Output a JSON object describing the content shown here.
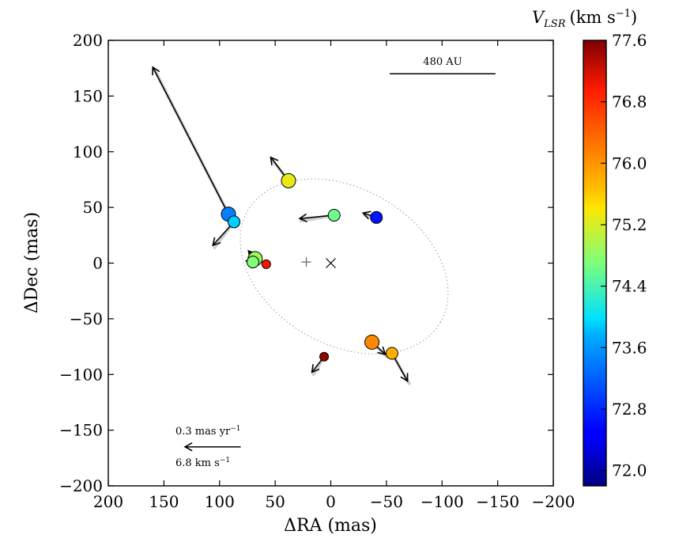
{
  "chart_data": {
    "type": "scatter",
    "xlabel": "ΔRA (mas)",
    "ylabel": "ΔDec (mas)",
    "xlim": [
      200,
      -200
    ],
    "ylim": [
      -200,
      200
    ],
    "xticks": [
      200,
      150,
      100,
      50,
      0,
      -50,
      -100,
      -150,
      -200
    ],
    "xtick_labels": [
      "200",
      "150",
      "100",
      "50",
      "0",
      "−50",
      "−100",
      "−150",
      "−200"
    ],
    "yticks": [
      200,
      150,
      100,
      50,
      0,
      -50,
      -100,
      -150,
      -200
    ],
    "ytick_labels": [
      "200",
      "150",
      "100",
      "50",
      "0",
      "−50",
      "−100",
      "−150",
      "−200"
    ],
    "grid": false,
    "colorbar": {
      "label": "V_LSR (km s^-1)",
      "label_main": "V",
      "label_sub": "LSR",
      "label_units": "(km s",
      "label_exp": "−1",
      "label_close": ")",
      "range": [
        71.8,
        77.6
      ],
      "ticks": [
        72.0,
        72.8,
        73.6,
        74.4,
        75.2,
        76.0,
        76.8,
        77.6
      ],
      "tick_labels": [
        "72.0",
        "72.8",
        "73.6",
        "74.4",
        "75.2",
        "76.0",
        "76.8",
        "77.6"
      ]
    },
    "points": [
      {
        "x": 92,
        "y": 44,
        "v": 73.4,
        "size": "large",
        "arrow": {
          "dx": 68,
          "dy": 132
        }
      },
      {
        "x": 87,
        "y": 37,
        "v": 73.9,
        "size": "medium",
        "arrow": {
          "dx": 19,
          "dy": -21
        }
      },
      {
        "x": 38,
        "y": 74,
        "v": 75.3,
        "size": "large",
        "arrow": {
          "dx": 16,
          "dy": 21
        }
      },
      {
        "x": -3,
        "y": 43,
        "v": 74.6,
        "size": "medium",
        "arrow": {
          "dx": 31,
          "dy": -3
        }
      },
      {
        "x": -41,
        "y": 41,
        "v": 72.6,
        "size": "medium",
        "arrow": {
          "dx": 12,
          "dy": 4
        }
      },
      {
        "x": 68,
        "y": 4,
        "v": 74.9,
        "size": "large",
        "arrow": {
          "dx": 6,
          "dy": 7
        }
      },
      {
        "x": 70,
        "y": 1,
        "v": 74.7,
        "size": "medium",
        "arrow": {
          "dx": 6,
          "dy": 1
        }
      },
      {
        "x": 58,
        "y": -1,
        "v": 77.0,
        "size": "small",
        "arrow": null
      },
      {
        "x": -37,
        "y": -71,
        "v": 76.1,
        "size": "large",
        "arrow": {
          "dx": -12,
          "dy": -11
        }
      },
      {
        "x": -55,
        "y": -81,
        "v": 75.8,
        "size": "medium",
        "arrow": {
          "dx": -14,
          "dy": -25
        }
      },
      {
        "x": 6,
        "y": -84,
        "v": 77.5,
        "size": "small",
        "arrow": {
          "dx": 11,
          "dy": -14
        }
      }
    ],
    "markers": [
      {
        "symbol": "plus",
        "x": 22,
        "y": 1
      },
      {
        "symbol": "cross",
        "x": 0,
        "y": 0
      }
    ],
    "ellipse": {
      "center_x": -12,
      "center_y": -3,
      "semi_major": 100,
      "semi_minor": 70,
      "angle_deg": -30
    },
    "scale_bar": {
      "label": "480 AU",
      "length_mas": 95
    },
    "velocity_legend": {
      "label_top": "0.3 mas yr",
      "label_top_exp": "−1",
      "label_bottom": "6.8 km s",
      "label_bottom_exp": "−1",
      "arrow_length_mas": 50
    }
  }
}
